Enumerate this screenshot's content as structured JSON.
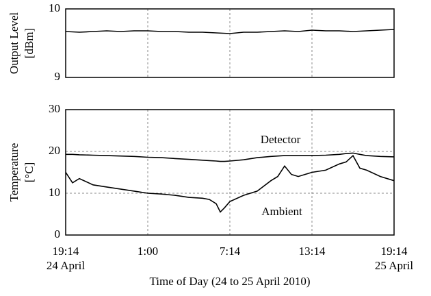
{
  "chart_data": [
    {
      "type": "line",
      "ylabel": "Output Level",
      "ylabel_unit": "[dBm]",
      "xlim": [
        0,
        24
      ],
      "xticks": [
        0,
        6,
        12,
        18,
        24
      ],
      "show_xtick_labels": false,
      "ylim": [
        9,
        10
      ],
      "yticks": [
        9,
        10
      ],
      "xgrid": true,
      "ygrid": false,
      "x": [
        0,
        1,
        2,
        3,
        4,
        5,
        6,
        7,
        8,
        9,
        10,
        11,
        12,
        13,
        14,
        15,
        16,
        17,
        18,
        19,
        20,
        21,
        22,
        23,
        24
      ],
      "series": [
        {
          "name": null,
          "color": "#000000",
          "values": [
            9.67,
            9.66,
            9.67,
            9.68,
            9.67,
            9.68,
            9.68,
            9.67,
            9.67,
            9.66,
            9.66,
            9.65,
            9.64,
            9.66,
            9.66,
            9.67,
            9.68,
            9.67,
            9.69,
            9.68,
            9.68,
            9.67,
            9.68,
            9.69,
            9.7
          ]
        }
      ]
    },
    {
      "type": "line",
      "ylabel": "Temperature",
      "ylabel_unit": "[°C]",
      "xlabel": "Time of Day (24 to 25 April 2010)",
      "xlim": [
        0,
        24
      ],
      "xticks": [
        {
          "value": 0,
          "label": "19:14"
        },
        {
          "value": 6,
          "label": "1:00"
        },
        {
          "value": 12,
          "label": "7:14"
        },
        {
          "value": 18,
          "label": "13:14"
        },
        {
          "value": 24,
          "label": "19:14"
        }
      ],
      "x_date_labels": [
        {
          "value": 0,
          "label": "24 April"
        },
        {
          "value": 24,
          "label": "25 April"
        }
      ],
      "show_xtick_labels": true,
      "ylim": [
        0,
        30
      ],
      "yticks": [
        0,
        10,
        20,
        30
      ],
      "xgrid": true,
      "ygrid": true,
      "x": [
        0,
        0.5,
        1,
        2,
        3,
        4,
        5,
        6,
        7,
        8,
        9,
        10,
        10.5,
        11,
        11.3,
        11.6,
        12,
        13,
        14,
        15,
        15.5,
        16,
        16.5,
        17,
        18,
        19,
        20,
        20.5,
        21,
        21.5,
        22,
        23,
        24
      ],
      "series": [
        {
          "name": "Detector",
          "color": "#000000",
          "values": [
            19.3,
            19.3,
            19.2,
            19.1,
            19.0,
            18.9,
            18.8,
            18.6,
            18.5,
            18.3,
            18.1,
            17.9,
            17.8,
            17.7,
            17.6,
            17.6,
            17.7,
            18.0,
            18.5,
            18.8,
            18.9,
            19.0,
            19.0,
            19.0,
            19.0,
            19.1,
            19.3,
            19.5,
            19.6,
            19.3,
            19.0,
            18.8,
            18.7
          ]
        },
        {
          "name": "Ambient",
          "color": "#000000",
          "values": [
            15.0,
            12.5,
            13.5,
            12.0,
            11.5,
            11.0,
            10.5,
            10.0,
            9.8,
            9.5,
            9.0,
            8.8,
            8.5,
            7.5,
            5.5,
            6.5,
            8.0,
            9.5,
            10.5,
            13.0,
            14.0,
            16.5,
            14.5,
            14.0,
            15.0,
            15.5,
            17.0,
            17.5,
            19.0,
            16.0,
            15.5,
            14.0,
            13.0
          ]
        }
      ]
    }
  ]
}
